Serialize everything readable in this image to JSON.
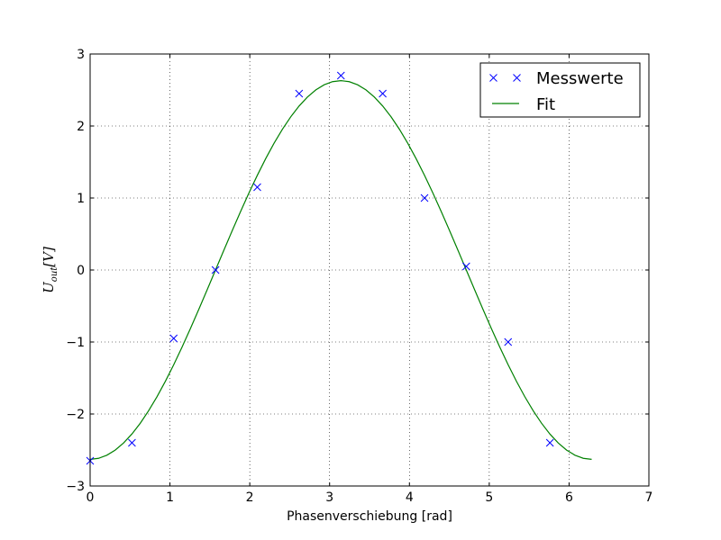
{
  "chart_data": {
    "type": "scatter",
    "title": "",
    "xlabel": "Phasenverschiebung [rad]",
    "ylabel": {
      "main": "U",
      "sub": "out",
      "unit": "[V]"
    },
    "xlim": [
      0,
      7
    ],
    "ylim": [
      -3,
      3
    ],
    "xticks": [
      0,
      1,
      2,
      3,
      4,
      5,
      6,
      7
    ],
    "yticks": [
      -3,
      -2,
      -1,
      0,
      1,
      2,
      3
    ],
    "xtick_labels": [
      "0",
      "1",
      "2",
      "3",
      "4",
      "5",
      "6",
      "7"
    ],
    "ytick_labels": [
      "−3",
      "−2",
      "−1",
      "0",
      "1",
      "2",
      "3"
    ],
    "grid": true,
    "legend_position": "top-right",
    "series": [
      {
        "name": "Messwerte",
        "kind": "scatter",
        "marker": "x",
        "color": "#0000ff",
        "x": [
          0.0,
          0.524,
          1.047,
          1.571,
          2.094,
          2.618,
          3.142,
          3.665,
          4.189,
          4.712,
          5.236,
          5.76
        ],
        "y": [
          -2.65,
          -2.4,
          -0.95,
          0.0,
          1.15,
          2.45,
          2.7,
          2.45,
          1.0,
          0.05,
          -1.0,
          -2.4
        ]
      },
      {
        "name": "Fit",
        "kind": "line",
        "color": "#008000",
        "function": {
          "amplitude": 2.63,
          "phase": 3.1416,
          "x_range": [
            0,
            6.283
          ],
          "samples": 60
        }
      }
    ]
  }
}
